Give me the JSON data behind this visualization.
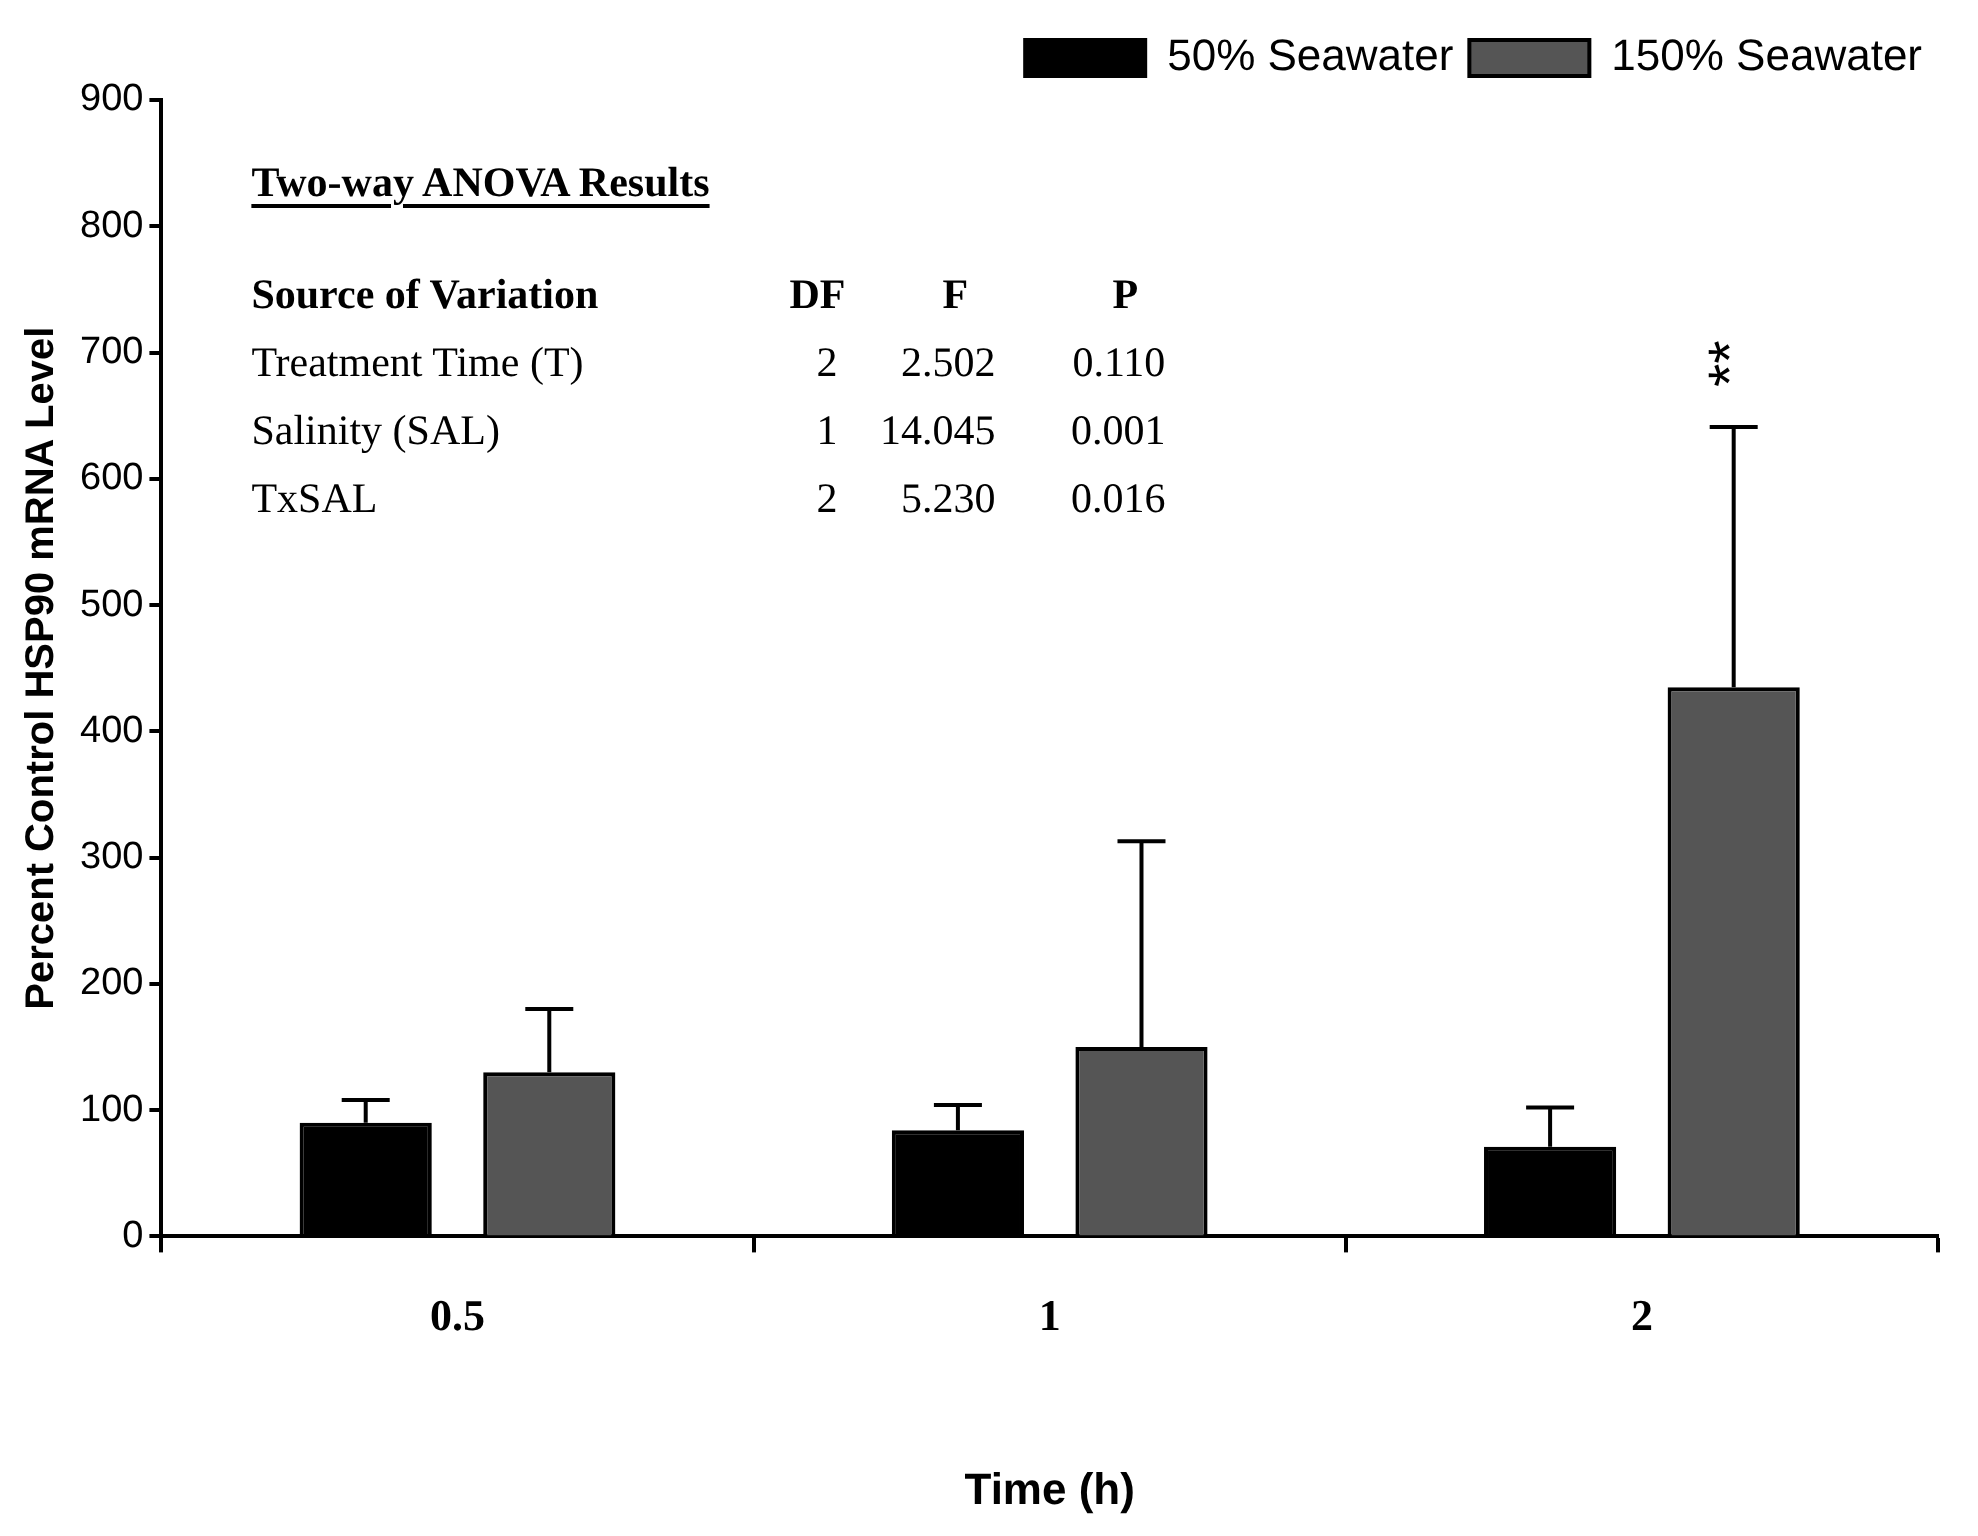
{
  "chart_data": {
    "type": "bar",
    "xlabel": "Time (h)",
    "ylabel": "Percent Control HSP90 mRNA Level",
    "categories": [
      "0.5",
      "1",
      "2"
    ],
    "series": [
      {
        "name": "50% Seawater",
        "color": "#000000",
        "values": [
          90,
          84,
          71
        ],
        "errors": [
          18,
          20,
          31
        ]
      },
      {
        "name": "150% Seawater",
        "color": "#555555",
        "values": [
          130,
          150,
          435
        ],
        "errors": [
          50,
          163,
          206
        ]
      }
    ],
    "ylim": [
      0,
      900
    ],
    "yticks": [
      0,
      100,
      200,
      300,
      400,
      500,
      600,
      700,
      800,
      900
    ],
    "grid": false,
    "legend": "top right",
    "annotations": [
      "Two-way ANOVA Results",
      "Source of Variation",
      "DF",
      "F",
      "P",
      "Treatment Time (T)",
      "2",
      "2.502",
      "0.110",
      "Salinity (SAL)",
      "1",
      "14.045",
      "0.001",
      "TxSAL",
      "2",
      "5.230",
      "0.016",
      "**"
    ]
  }
}
